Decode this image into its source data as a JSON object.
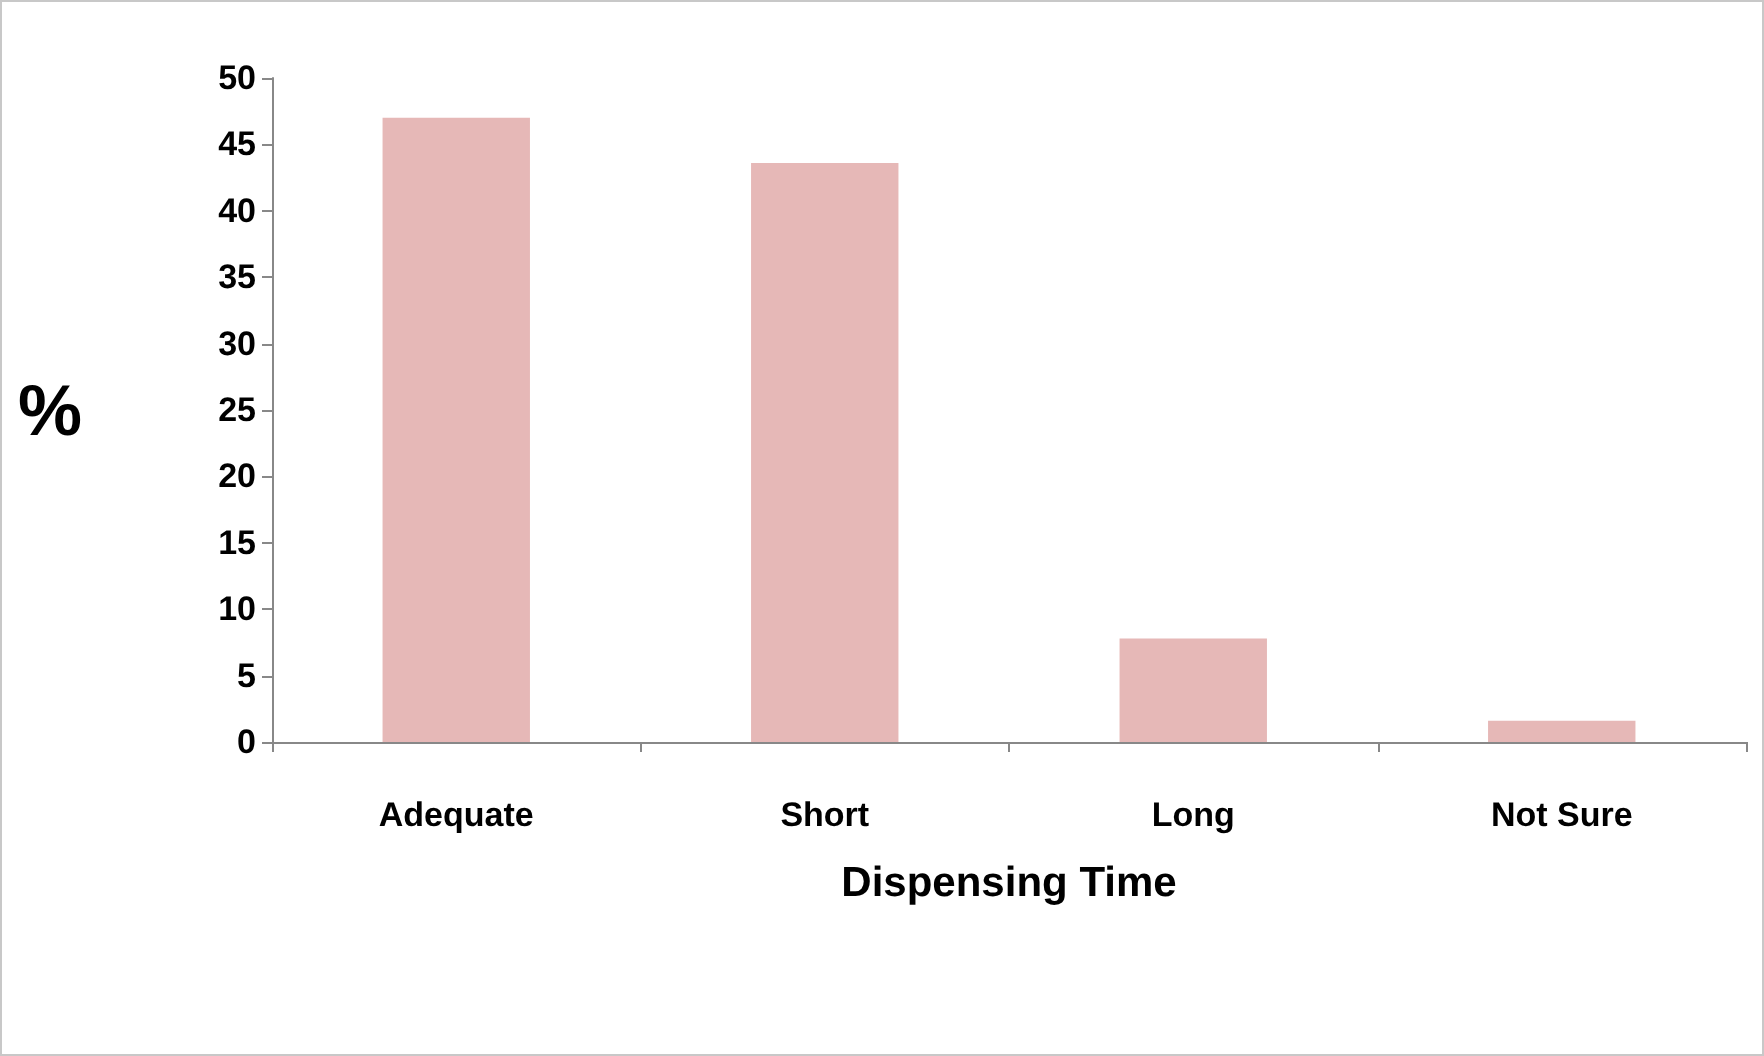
{
  "chart_data": {
    "type": "bar",
    "xlabel": "Dispensing Time",
    "ylabel": "%",
    "categories": [
      "Adequate",
      "Short",
      "Long",
      "Not Sure"
    ],
    "values": [
      47.0,
      43.6,
      7.8,
      1.6
    ],
    "color": "#e6b8b7",
    "ylim": [
      0,
      50
    ],
    "yticks": [
      0,
      5,
      10,
      15,
      20,
      25,
      30,
      35,
      40,
      45,
      50
    ],
    "grid": false
  }
}
